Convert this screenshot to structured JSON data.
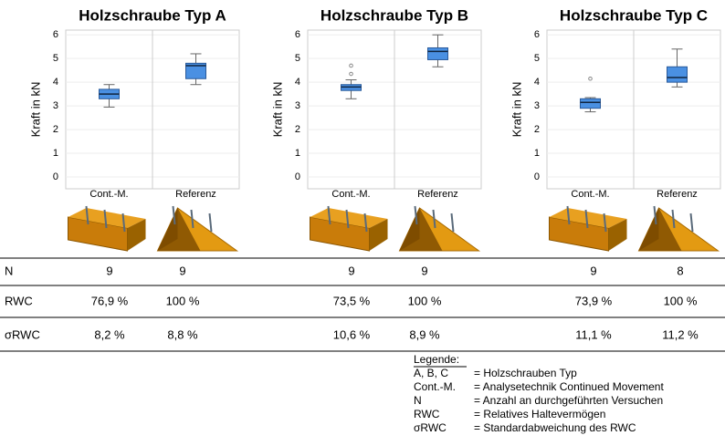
{
  "chart_data": [
    {
      "type": "box",
      "title": "Holzschraube Typ A",
      "ylabel": "Kraft in kN",
      "categories": [
        "Cont.-M.",
        "Referenz"
      ],
      "boxes": [
        {
          "min": 2.95,
          "q1": 3.3,
          "median": 3.5,
          "q3": 3.7,
          "max": 3.9,
          "outliers": []
        },
        {
          "min": 3.9,
          "q1": 4.15,
          "median": 4.7,
          "q3": 4.8,
          "max": 5.2,
          "outliers": []
        }
      ],
      "color": "#4a90e2",
      "ylim": [
        -0.5,
        6.2
      ],
      "yticks": [
        0,
        1,
        2,
        3,
        4,
        5,
        6
      ],
      "grid": true
    },
    {
      "type": "box",
      "title": "Holzschraube Typ B",
      "ylabel": "Kraft in kN",
      "categories": [
        "Cont.-M.",
        "Referenz"
      ],
      "boxes": [
        {
          "min": 3.3,
          "q1": 3.65,
          "median": 3.8,
          "q3": 3.9,
          "max": 4.1,
          "outliers": [
            4.35,
            4.7
          ]
        },
        {
          "min": 4.65,
          "q1": 4.95,
          "median": 5.3,
          "q3": 5.45,
          "max": 6.0,
          "outliers": []
        }
      ],
      "color": "#4a90e2",
      "ylim": [
        -0.5,
        6.2
      ],
      "yticks": [
        0,
        1,
        2,
        3,
        4,
        5,
        6
      ],
      "grid": true
    },
    {
      "type": "box",
      "title": "Holzschraube Typ C",
      "ylabel": "Kraft in kN",
      "categories": [
        "Cont.-M.",
        "Referenz"
      ],
      "boxes": [
        {
          "min": 2.75,
          "q1": 2.9,
          "median": 3.15,
          "q3": 3.3,
          "max": 3.35,
          "outliers": [
            4.15
          ]
        },
        {
          "min": 3.8,
          "q1": 4.0,
          "median": 4.2,
          "q3": 4.65,
          "max": 5.4,
          "outliers": []
        }
      ],
      "color": "#4a90e2",
      "ylim": [
        -0.5,
        6.2
      ],
      "yticks": [
        0,
        1,
        2,
        3,
        4,
        5,
        6
      ],
      "grid": true
    }
  ],
  "table": {
    "rows": [
      [
        "N",
        "9",
        "9",
        "9",
        "9",
        "9",
        "8"
      ],
      [
        "RWC",
        "76,9 %",
        "100 %",
        "73,5 %",
        "100 %",
        "73,9 %",
        "100 %"
      ],
      [
        "σRWC",
        "8,2 %",
        "8,8 %",
        "10,6 %",
        "8,9 %",
        "11,1 %",
        "11,2 %"
      ]
    ]
  },
  "legend": {
    "title": "Legende:",
    "items": [
      {
        "key": "A, B, C",
        "text": "= Holzschrauben Typ"
      },
      {
        "key": "Cont.-M.",
        "text": "= Analysetechnik Continued Movement"
      },
      {
        "key": "N",
        "text": "= Anzahl an durchgeführten Versuchen"
      },
      {
        "key": "RWC",
        "text": "= Relatives Haltevermögen"
      },
      {
        "key": "σRWC",
        "text": "= Standardabweichung des RWC"
      }
    ]
  }
}
